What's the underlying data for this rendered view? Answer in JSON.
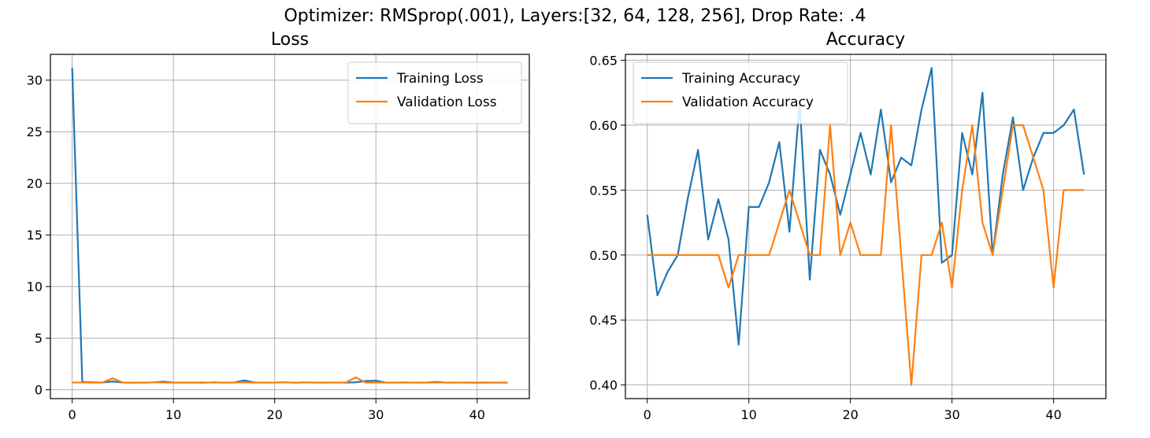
{
  "suptitle": "Optimizer: RMSprop(.001), Layers:[32, 64, 128, 256], Drop Rate: .4",
  "colors": {
    "training": "#1f77b4",
    "validation": "#ff7f0e",
    "grid": "#b0b0b0",
    "axes": "#000000"
  },
  "chart_data": [
    {
      "type": "line",
      "title": "Loss",
      "xlabel": "",
      "ylabel": "",
      "xlim": [
        -2.15,
        45.15
      ],
      "ylim": [
        -0.86,
        32.5
      ],
      "xticks": [
        0,
        10,
        20,
        30,
        40
      ],
      "yticks": [
        0,
        5,
        10,
        15,
        20,
        25,
        30
      ],
      "ytick_labels": [
        "0",
        "5",
        "10",
        "15",
        "20",
        "25",
        "30"
      ],
      "grid": true,
      "legend": "upper right",
      "x": [
        0,
        1,
        2,
        3,
        4,
        5,
        6,
        7,
        8,
        9,
        10,
        11,
        12,
        13,
        14,
        15,
        16,
        17,
        18,
        19,
        20,
        21,
        22,
        23,
        24,
        25,
        26,
        27,
        28,
        29,
        30,
        31,
        32,
        33,
        34,
        35,
        36,
        37,
        38,
        39,
        40,
        41,
        42,
        43
      ],
      "series": [
        {
          "name": "Training Loss",
          "color": "#1f77b4",
          "values": [
            31.2,
            0.75,
            0.72,
            0.7,
            0.8,
            0.7,
            0.68,
            0.69,
            0.71,
            0.78,
            0.7,
            0.69,
            0.7,
            0.68,
            0.72,
            0.69,
            0.7,
            0.9,
            0.71,
            0.69,
            0.7,
            0.72,
            0.69,
            0.72,
            0.7,
            0.69,
            0.71,
            0.69,
            0.72,
            0.85,
            0.88,
            0.69,
            0.7,
            0.71,
            0.69,
            0.7,
            0.75,
            0.69,
            0.7,
            0.69,
            0.68,
            0.69,
            0.7,
            0.68
          ]
        },
        {
          "name": "Validation Loss",
          "color": "#ff7f0e",
          "values": [
            0.7,
            0.71,
            0.69,
            0.7,
            1.1,
            0.7,
            0.69,
            0.69,
            0.72,
            0.7,
            0.69,
            0.7,
            0.69,
            0.71,
            0.69,
            0.7,
            0.7,
            0.72,
            0.69,
            0.7,
            0.7,
            0.71,
            0.69,
            0.7,
            0.69,
            0.7,
            0.7,
            0.69,
            1.2,
            0.69,
            0.7,
            0.7,
            0.69,
            0.7,
            0.7,
            0.69,
            0.7,
            0.7,
            0.69,
            0.71,
            0.7,
            0.71,
            0.7,
            0.7
          ]
        }
      ]
    },
    {
      "type": "line",
      "title": "Accuracy",
      "xlabel": "",
      "ylabel": "",
      "xlim": [
        -2.15,
        45.15
      ],
      "ylim": [
        0.3895,
        0.6545
      ],
      "xticks": [
        0,
        10,
        20,
        30,
        40
      ],
      "yticks": [
        0.4,
        0.45,
        0.5,
        0.55,
        0.6,
        0.65
      ],
      "ytick_labels": [
        "0.40",
        "0.45",
        "0.50",
        "0.55",
        "0.60",
        "0.65"
      ],
      "grid": true,
      "legend": "upper left",
      "x": [
        0,
        1,
        2,
        3,
        4,
        5,
        6,
        7,
        8,
        9,
        10,
        11,
        12,
        13,
        14,
        15,
        16,
        17,
        18,
        19,
        20,
        21,
        22,
        23,
        24,
        25,
        26,
        27,
        28,
        29,
        30,
        31,
        32,
        33,
        34,
        35,
        36,
        37,
        38,
        39,
        40,
        41,
        42,
        43
      ],
      "series": [
        {
          "name": "Training Accuracy",
          "color": "#1f77b4",
          "values": [
            0.531,
            0.469,
            0.487,
            0.5,
            0.544,
            0.581,
            0.512,
            0.543,
            0.512,
            0.431,
            0.537,
            0.537,
            0.556,
            0.587,
            0.518,
            0.618,
            0.481,
            0.581,
            0.562,
            0.531,
            0.562,
            0.594,
            0.562,
            0.612,
            0.556,
            0.575,
            0.569,
            0.612,
            0.644,
            0.494,
            0.5,
            0.594,
            0.562,
            0.625,
            0.5,
            0.562,
            0.606,
            0.55,
            0.575,
            0.594,
            0.594,
            0.6,
            0.612,
            0.562
          ]
        },
        {
          "name": "Validation Accuracy",
          "color": "#ff7f0e",
          "values": [
            0.5,
            0.5,
            0.5,
            0.5,
            0.5,
            0.5,
            0.5,
            0.5,
            0.475,
            0.5,
            0.5,
            0.5,
            0.5,
            0.525,
            0.55,
            0.525,
            0.5,
            0.5,
            0.6,
            0.5,
            0.525,
            0.5,
            0.5,
            0.5,
            0.6,
            0.5,
            0.4,
            0.5,
            0.5,
            0.525,
            0.475,
            0.55,
            0.6,
            0.525,
            0.5,
            0.55,
            0.6,
            0.6,
            0.575,
            0.55,
            0.475,
            0.55,
            0.55,
            0.55
          ]
        }
      ]
    }
  ]
}
